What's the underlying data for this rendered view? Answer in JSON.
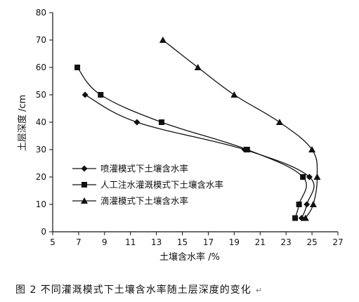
{
  "chart_data": {
    "type": "line",
    "title": "",
    "xlabel": "土壤含水率 /%",
    "ylabel": "土层深度 /cm",
    "xlim": [
      5,
      27
    ],
    "ylim": [
      0,
      80
    ],
    "xticks": [
      5,
      7,
      9,
      11,
      13,
      15,
      17,
      19,
      21,
      23,
      25,
      27
    ],
    "yticks": [
      0,
      10,
      20,
      30,
      40,
      50,
      60,
      70,
      80
    ],
    "grid": false,
    "legend_position": "middle-left",
    "series": [
      {
        "name": "喷灌模式下土壤含水率",
        "marker": "diamond",
        "x": [
          24.2,
          24.6,
          24.8,
          19.8,
          11.5,
          7.5
        ],
        "y": [
          5,
          10,
          20,
          30,
          40,
          50
        ]
      },
      {
        "name": "人工注水灌溉模式下土壤含水率",
        "marker": "square",
        "x": [
          23.7,
          24.0,
          24.3,
          20.0,
          13.4,
          8.7,
          6.9
        ],
        "y": [
          5,
          10,
          20,
          30,
          40,
          50,
          60
        ]
      },
      {
        "name": "滴灌模式下土壤含水率",
        "marker": "triangle",
        "x": [
          24.5,
          25.1,
          25.4,
          25.0,
          22.5,
          19.0,
          16.2,
          13.5
        ],
        "y": [
          5,
          10,
          20,
          30,
          40,
          50,
          60,
          70
        ]
      }
    ]
  },
  "caption": {
    "text": "图 2   不同灌溉模式下土壤含水率随土层深度的变化",
    "mark": "↵"
  }
}
